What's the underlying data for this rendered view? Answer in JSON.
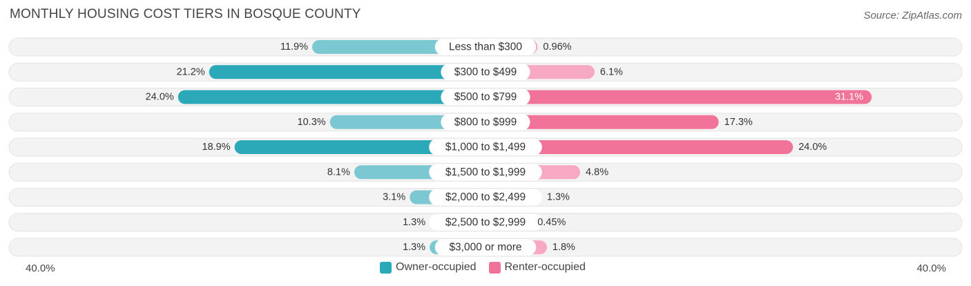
{
  "title": "MONTHLY HOUSING COST TIERS IN BOSQUE COUNTY",
  "source": "Source: ZipAtlas.com",
  "colors": {
    "owner": "#2BA9B8",
    "renter": "#F2739A",
    "owner_light": "#7CC8D2",
    "renter_light": "#F7A8C2"
  },
  "chart_data": {
    "type": "bar",
    "orientation": "diverging-horizontal",
    "title": "MONTHLY HOUSING COST TIERS IN BOSQUE COUNTY",
    "categories": [
      "Less than $300",
      "$300 to $499",
      "$500 to $799",
      "$800 to $999",
      "$1,000 to $1,499",
      "$1,500 to $1,999",
      "$2,000 to $2,499",
      "$2,500 to $2,999",
      "$3,000 or more"
    ],
    "series": [
      {
        "name": "Owner-occupied",
        "values": [
          11.9,
          21.2,
          24.0,
          10.3,
          18.9,
          8.1,
          3.1,
          1.3,
          1.3
        ],
        "labels": [
          "11.9%",
          "21.2%",
          "24.0%",
          "10.3%",
          "18.9%",
          "8.1%",
          "3.1%",
          "1.3%",
          "1.3%"
        ]
      },
      {
        "name": "Renter-occupied",
        "values": [
          0.96,
          6.1,
          31.1,
          17.3,
          24.0,
          4.8,
          1.3,
          0.45,
          1.8
        ],
        "labels": [
          "0.96%",
          "6.1%",
          "31.1%",
          "17.3%",
          "24.0%",
          "4.8%",
          "1.3%",
          "0.45%",
          "1.8%"
        ]
      }
    ],
    "xlim": [
      -40,
      40
    ],
    "axis_left_label": "40.0%",
    "axis_right_label": "40.0%",
    "legend_position": "bottom-center"
  }
}
